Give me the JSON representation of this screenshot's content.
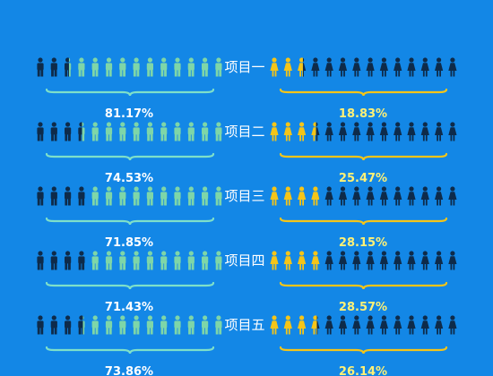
{
  "chart_data": {
    "type": "pictorial-bar",
    "categories": [
      "项目一",
      "项目二",
      "项目三",
      "项目四",
      "项目五"
    ],
    "series": [
      {
        "values": [
          81.17,
          74.53,
          71.85,
          71.43,
          73.86
        ]
      },
      {
        "values": [
          18.83,
          25.47,
          28.15,
          28.57,
          26.14
        ]
      }
    ],
    "value_labels_left": [
      "81.17%",
      "74.53%",
      "71.85%",
      "71.43%",
      "73.86%"
    ],
    "value_labels_right": [
      "18.83%",
      "25.47%",
      "28.15%",
      "28.57%",
      "26.14%"
    ],
    "colors": {
      "background": "#1387E6",
      "male_fill": "#7ED6A8",
      "female_fill": "#F5C518",
      "empty_icon": "#0E2B4A",
      "left_brace": "#7EE0C9",
      "right_brace": "#F5C518",
      "left_pct": "#FFFFFF",
      "right_pct": "#FFF176"
    },
    "icons": [
      "male-person-icon",
      "female-person-icon"
    ],
    "icon_count_per_side": 14
  }
}
